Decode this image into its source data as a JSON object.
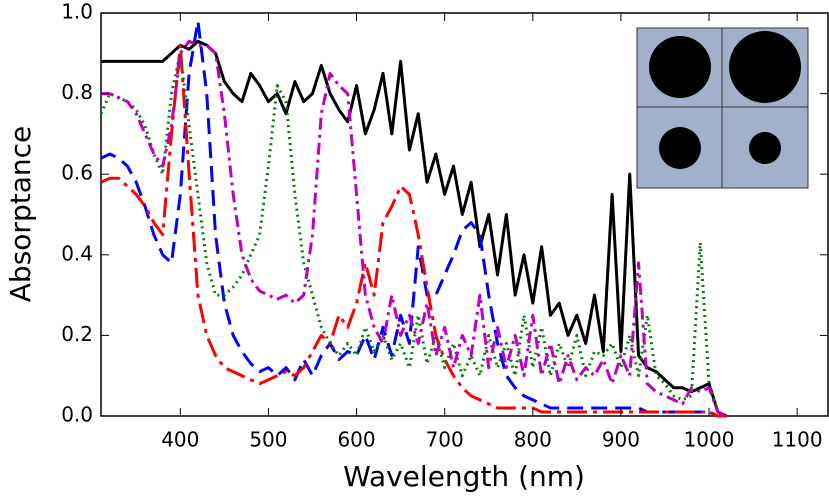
{
  "chart_data": {
    "type": "line",
    "x_label": "Wavelength (nm)",
    "y_label": "Absorptance",
    "xlim": [
      310,
      1135
    ],
    "ylim": [
      0,
      1
    ],
    "xticks": [
      400,
      500,
      600,
      700,
      800,
      900,
      1000,
      1100
    ],
    "yticks": [
      {
        "value": 0,
        "label": "0.0"
      },
      {
        "value": 0.2,
        "label": "0.2"
      },
      {
        "value": 0.4,
        "label": "0.4"
      },
      {
        "value": 0.6,
        "label": "0.6"
      },
      {
        "value": 0.8,
        "label": "0.8"
      },
      {
        "value": 1,
        "label": "1.0"
      }
    ],
    "grid": false,
    "x": [
      310,
      320,
      330,
      340,
      350,
      360,
      370,
      380,
      390,
      400,
      410,
      420,
      430,
      440,
      450,
      460,
      470,
      480,
      490,
      500,
      510,
      520,
      530,
      540,
      550,
      560,
      570,
      580,
      590,
      600,
      610,
      620,
      630,
      640,
      650,
      660,
      670,
      680,
      690,
      700,
      710,
      720,
      730,
      740,
      750,
      760,
      770,
      780,
      790,
      800,
      810,
      820,
      830,
      840,
      850,
      860,
      870,
      880,
      890,
      900,
      910,
      920,
      930,
      940,
      950,
      960,
      970,
      980,
      990,
      1000,
      1010,
      1020
    ],
    "series": [
      {
        "color": "#000000",
        "linestyle": "solid",
        "values": [
          0.88,
          0.88,
          0.88,
          0.88,
          0.88,
          0.88,
          0.88,
          0.88,
          0.9,
          0.92,
          0.91,
          0.93,
          0.92,
          0.9,
          0.83,
          0.8,
          0.78,
          0.85,
          0.82,
          0.78,
          0.8,
          0.75,
          0.83,
          0.78,
          0.8,
          0.87,
          0.8,
          0.76,
          0.73,
          0.82,
          0.7,
          0.76,
          0.85,
          0.7,
          0.88,
          0.66,
          0.75,
          0.58,
          0.65,
          0.55,
          0.62,
          0.5,
          0.58,
          0.42,
          0.5,
          0.35,
          0.5,
          0.3,
          0.4,
          0.28,
          0.42,
          0.25,
          0.28,
          0.2,
          0.25,
          0.18,
          0.3,
          0.16,
          0.55,
          0.16,
          0.6,
          0.15,
          0.12,
          0.11,
          0.09,
          0.07,
          0.07,
          0.06,
          0.07,
          0.08,
          0.01,
          0
        ]
      },
      {
        "color": "#0000ff",
        "linestyle": "dashed",
        "values": [
          0.64,
          0.65,
          0.64,
          0.62,
          0.58,
          0.52,
          0.45,
          0.4,
          0.38,
          0.55,
          0.85,
          0.98,
          0.8,
          0.45,
          0.28,
          0.2,
          0.16,
          0.13,
          0.11,
          0.12,
          0.1,
          0.12,
          0.09,
          0.14,
          0.1,
          0.15,
          0.18,
          0.14,
          0.16,
          0.15,
          0.2,
          0.14,
          0.22,
          0.15,
          0.25,
          0.18,
          0.42,
          0.3,
          0.3,
          0.35,
          0.4,
          0.46,
          0.48,
          0.45,
          0.3,
          0.18,
          0.1,
          0.07,
          0.05,
          0.04,
          0.03,
          0.02,
          0.02,
          0.02,
          0.02,
          0.02,
          0.02,
          0.02,
          0.02,
          0.02,
          0.02,
          0.02,
          0.01,
          0.01,
          0.01,
          0.01,
          0.01,
          0.01,
          0.01,
          0.01,
          0,
          0
        ]
      },
      {
        "color": "#ff0000",
        "linestyle": "longdashdot",
        "values": [
          0.58,
          0.59,
          0.59,
          0.57,
          0.55,
          0.52,
          0.48,
          0.45,
          0.7,
          0.92,
          0.6,
          0.3,
          0.2,
          0.15,
          0.12,
          0.11,
          0.1,
          0.09,
          0.08,
          0.09,
          0.1,
          0.11,
          0.1,
          0.12,
          0.16,
          0.2,
          0.18,
          0.25,
          0.22,
          0.28,
          0.38,
          0.3,
          0.48,
          0.52,
          0.57,
          0.55,
          0.45,
          0.32,
          0.2,
          0.14,
          0.1,
          0.07,
          0.05,
          0.04,
          0.03,
          0.02,
          0.02,
          0.02,
          0.02,
          0.02,
          0.01,
          0.01,
          0.01,
          0.01,
          0.01,
          0.01,
          0.01,
          0.01,
          0.01,
          0.01,
          0.01,
          0.01,
          0.01,
          0.01,
          0.01,
          0.01,
          0.01,
          0.01,
          0.01,
          0.01,
          0,
          0
        ]
      },
      {
        "color": "#008000",
        "linestyle": "dotted",
        "values": [
          0.75,
          0.8,
          0.79,
          0.78,
          0.76,
          0.72,
          0.65,
          0.6,
          0.8,
          0.9,
          0.72,
          0.55,
          0.38,
          0.3,
          0.3,
          0.32,
          0.35,
          0.4,
          0.45,
          0.62,
          0.82,
          0.78,
          0.55,
          0.38,
          0.3,
          0.22,
          0.18,
          0.15,
          0.18,
          0.15,
          0.22,
          0.16,
          0.2,
          0.14,
          0.18,
          0.12,
          0.25,
          0.13,
          0.2,
          0.12,
          0.18,
          0.1,
          0.15,
          0.1,
          0.2,
          0.12,
          0.18,
          0.1,
          0.25,
          0.12,
          0.22,
          0.1,
          0.18,
          0.12,
          0.2,
          0.1,
          0.16,
          0.15,
          0.18,
          0.12,
          0.2,
          0.1,
          0.25,
          0.1,
          0.08,
          0.05,
          0.04,
          0.05,
          0.43,
          0.08,
          0.01,
          0
        ]
      },
      {
        "color": "#bf00bf",
        "linestyle": "dashdot",
        "values": [
          0.8,
          0.8,
          0.79,
          0.78,
          0.75,
          0.7,
          0.65,
          0.62,
          0.72,
          0.9,
          0.93,
          0.92,
          0.92,
          0.9,
          0.75,
          0.55,
          0.4,
          0.34,
          0.31,
          0.3,
          0.29,
          0.3,
          0.28,
          0.3,
          0.45,
          0.75,
          0.85,
          0.82,
          0.8,
          0.55,
          0.3,
          0.22,
          0.18,
          0.3,
          0.2,
          0.25,
          0.18,
          0.28,
          0.15,
          0.22,
          0.12,
          0.2,
          0.15,
          0.3,
          0.12,
          0.22,
          0.12,
          0.2,
          0.1,
          0.25,
          0.1,
          0.18,
          0.08,
          0.15,
          0.09,
          0.12,
          0.1,
          0.14,
          0.08,
          0.15,
          0.1,
          0.38,
          0.08,
          0.06,
          0.05,
          0.04,
          0.03,
          0.07,
          0.06,
          0.07,
          0.01,
          0
        ]
      }
    ]
  }
}
